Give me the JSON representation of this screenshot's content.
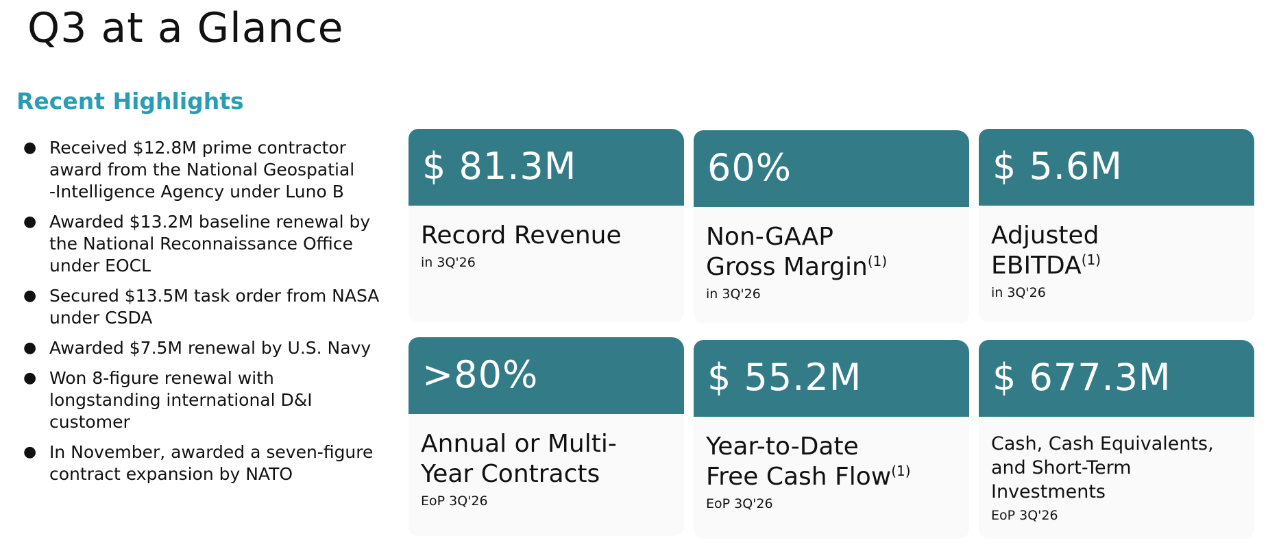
{
  "page": {
    "title": "Q3 at a Glance"
  },
  "highlights": {
    "heading": "Recent Highlights",
    "bullet_glyph": "●",
    "items": [
      {
        "lines": [
          "Received $12.8M prime contractor",
          "award from the National Geospatial",
          "-Intelligence Agency under Luno B"
        ]
      },
      {
        "lines": [
          "Awarded $13.2M baseline renewal by",
          "the National Reconnaissance Office",
          "under EOCL"
        ]
      },
      {
        "lines": [
          "Secured $13.5M task order from NASA",
          "under CSDA"
        ]
      },
      {
        "lines": [
          "Awarded $7.5M renewal by U.S. Navy"
        ]
      },
      {
        "lines": [
          "Won 8-figure renewal with",
          "longstanding international D&I",
          "customer"
        ]
      },
      {
        "lines": [
          "In November, awarded a seven-figure",
          "contract expansion by NATO"
        ]
      }
    ]
  },
  "metrics": [
    {
      "value": "$ 81.3M",
      "label_lines": [
        "Record Revenue"
      ],
      "footnote": "",
      "period": "in  3Q'26"
    },
    {
      "value": "60%",
      "label_lines": [
        "Non-GAAP",
        "Gross Margin"
      ],
      "footnote": "(1)",
      "period": "in  3Q'26"
    },
    {
      "value": "$ 5.6M",
      "label_lines": [
        "Adjusted",
        "EBITDA"
      ],
      "footnote": "(1)",
      "period": "in  3Q'26"
    },
    {
      "value": ">80%",
      "label_lines": [
        "Annual or Multi-",
        "Year Contracts"
      ],
      "footnote": "",
      "period": "EoP 3Q'26"
    },
    {
      "value": "$ 55.2M",
      "label_lines": [
        "Year-to-Date",
        "Free Cash Flow"
      ],
      "footnote": "(1)",
      "period": "EoP 3Q'26"
    },
    {
      "value": "$ 677.3M",
      "label_lines": [
        "Cash, Cash Equivalents,",
        "and Short-Term",
        "Investments"
      ],
      "footnote": "",
      "period": "EoP 3Q'26"
    }
  ],
  "colors": {
    "accent": "#2a9db4",
    "card_header": "#327b87",
    "card_body": "#fafafa",
    "text": "#111111"
  }
}
